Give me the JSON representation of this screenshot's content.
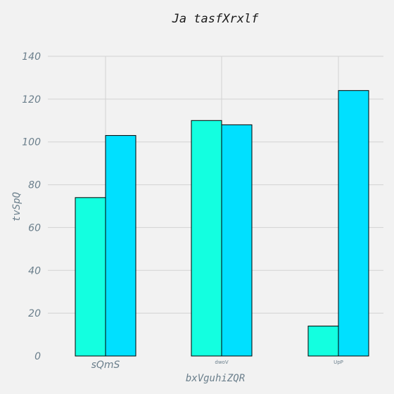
{
  "chart_data": {
    "type": "bar",
    "title": "Ja tasfXrxlf",
    "xlabel": "bxVguhiZQR",
    "ylabel": "tvSpQ",
    "categories": [
      "sQmS",
      "dwoV",
      "UpP"
    ],
    "series": [
      {
        "color": "#13ffe0",
        "values": [
          74,
          110,
          14
        ]
      },
      {
        "color": "#00e0ff",
        "values": [
          103,
          108,
          124
        ]
      }
    ],
    "ylim": [
      0,
      140
    ],
    "yticks": [
      0,
      20,
      40,
      60,
      80,
      100,
      120,
      140
    ],
    "grid": true,
    "legend": "none"
  }
}
